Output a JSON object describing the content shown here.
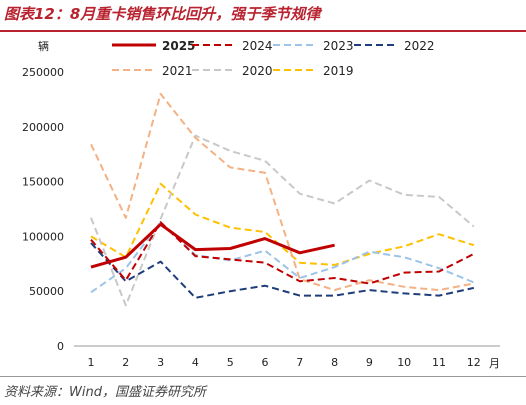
{
  "title": "图表12：8月重卡销售环比回升，强于季节规律",
  "source": "资料来源：Wind，国盛证券研究所",
  "chart_data": {
    "type": "line",
    "ylabel": "辆",
    "xunit": "月",
    "categories": [
      "1",
      "2",
      "3",
      "4",
      "5",
      "6",
      "7",
      "8",
      "9",
      "10",
      "11",
      "12"
    ],
    "yticks": [
      "0",
      "50000",
      "100000",
      "150000",
      "200000",
      "250000"
    ],
    "ylim": [
      0,
      250000
    ],
    "legend_position": "top",
    "grid": false,
    "series": [
      {
        "name": "2025",
        "color": "#c00000",
        "dash": "solid",
        "width": 3,
        "values": [
          72000,
          81000,
          111000,
          88000,
          89000,
          98000,
          85000,
          92000,
          null,
          null,
          null,
          null
        ]
      },
      {
        "name": "2024",
        "color": "#c00000",
        "dash": "dash",
        "width": 2,
        "values": [
          97000,
          60000,
          113000,
          82000,
          79000,
          76000,
          59000,
          62000,
          57000,
          67000,
          68000,
          84000
        ]
      },
      {
        "name": "2023",
        "color": "#9dc3e6",
        "dash": "dash",
        "width": 2,
        "values": [
          49000,
          71000,
          113000,
          83000,
          78000,
          87000,
          62000,
          72000,
          86000,
          81000,
          71000,
          58000
        ]
      },
      {
        "name": "2022",
        "color": "#1f3d7a",
        "dash": "dash",
        "width": 2,
        "values": [
          94000,
          59000,
          77000,
          44000,
          50000,
          55000,
          46000,
          46000,
          51000,
          48000,
          46000,
          53000
        ]
      },
      {
        "name": "2021",
        "color": "#f4b183",
        "dash": "dash",
        "width": 2,
        "values": [
          184000,
          117000,
          230000,
          190000,
          163000,
          158000,
          61000,
          51000,
          60000,
          54000,
          51000,
          57000
        ]
      },
      {
        "name": "2020",
        "color": "#c8c8c8",
        "dash": "dash",
        "width": 2,
        "values": [
          117000,
          37000,
          116000,
          192000,
          178000,
          169000,
          139000,
          130000,
          151000,
          138000,
          136000,
          109000
        ]
      },
      {
        "name": "2019",
        "color": "#ffc000",
        "dash": "dash",
        "width": 2,
        "values": [
          100000,
          81000,
          148000,
          120000,
          108000,
          104000,
          76000,
          74000,
          84000,
          91000,
          102000,
          92000
        ]
      }
    ]
  }
}
